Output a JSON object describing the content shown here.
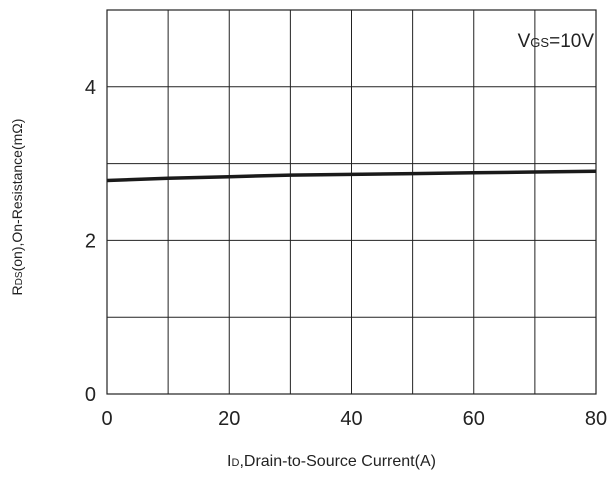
{
  "chart_data": {
    "type": "line",
    "title": "",
    "xlabel": "ID,Drain-to-Source Current(A)",
    "xlabel_sub": {
      "main": "I",
      "sub": "D",
      "rest": ",Drain-to-Source Current(A)"
    },
    "ylabel": "RDS(on),On-Resistance(mΩ)",
    "ylabel_sub": {
      "main": "R",
      "sub": "DS",
      "rest": "(on),On-Resistance(mΩ)"
    },
    "annotation": "VGS=10V",
    "annotation_sub": {
      "main": "V",
      "sub": "GS",
      "rest": "=10V"
    },
    "xlim": [
      0,
      80
    ],
    "ylim": [
      0,
      5
    ],
    "x_ticks": [
      0,
      20,
      40,
      60,
      80
    ],
    "x_tick_labels": [
      "0",
      "20",
      "40",
      "60",
      "80"
    ],
    "y_ticks": [
      0,
      2,
      4
    ],
    "y_tick_labels": [
      "0",
      "2",
      "4"
    ],
    "grid": true,
    "x_grid_step": 10,
    "y_grid_step": 1,
    "series": [
      {
        "x": [
          0,
          10,
          20,
          30,
          40,
          50,
          60,
          70,
          80
        ],
        "values": [
          2.78,
          2.81,
          2.83,
          2.85,
          2.86,
          2.87,
          2.88,
          2.89,
          2.9
        ]
      }
    ],
    "colors": {
      "line": "#1a1a1a",
      "grid": "#222222"
    }
  }
}
